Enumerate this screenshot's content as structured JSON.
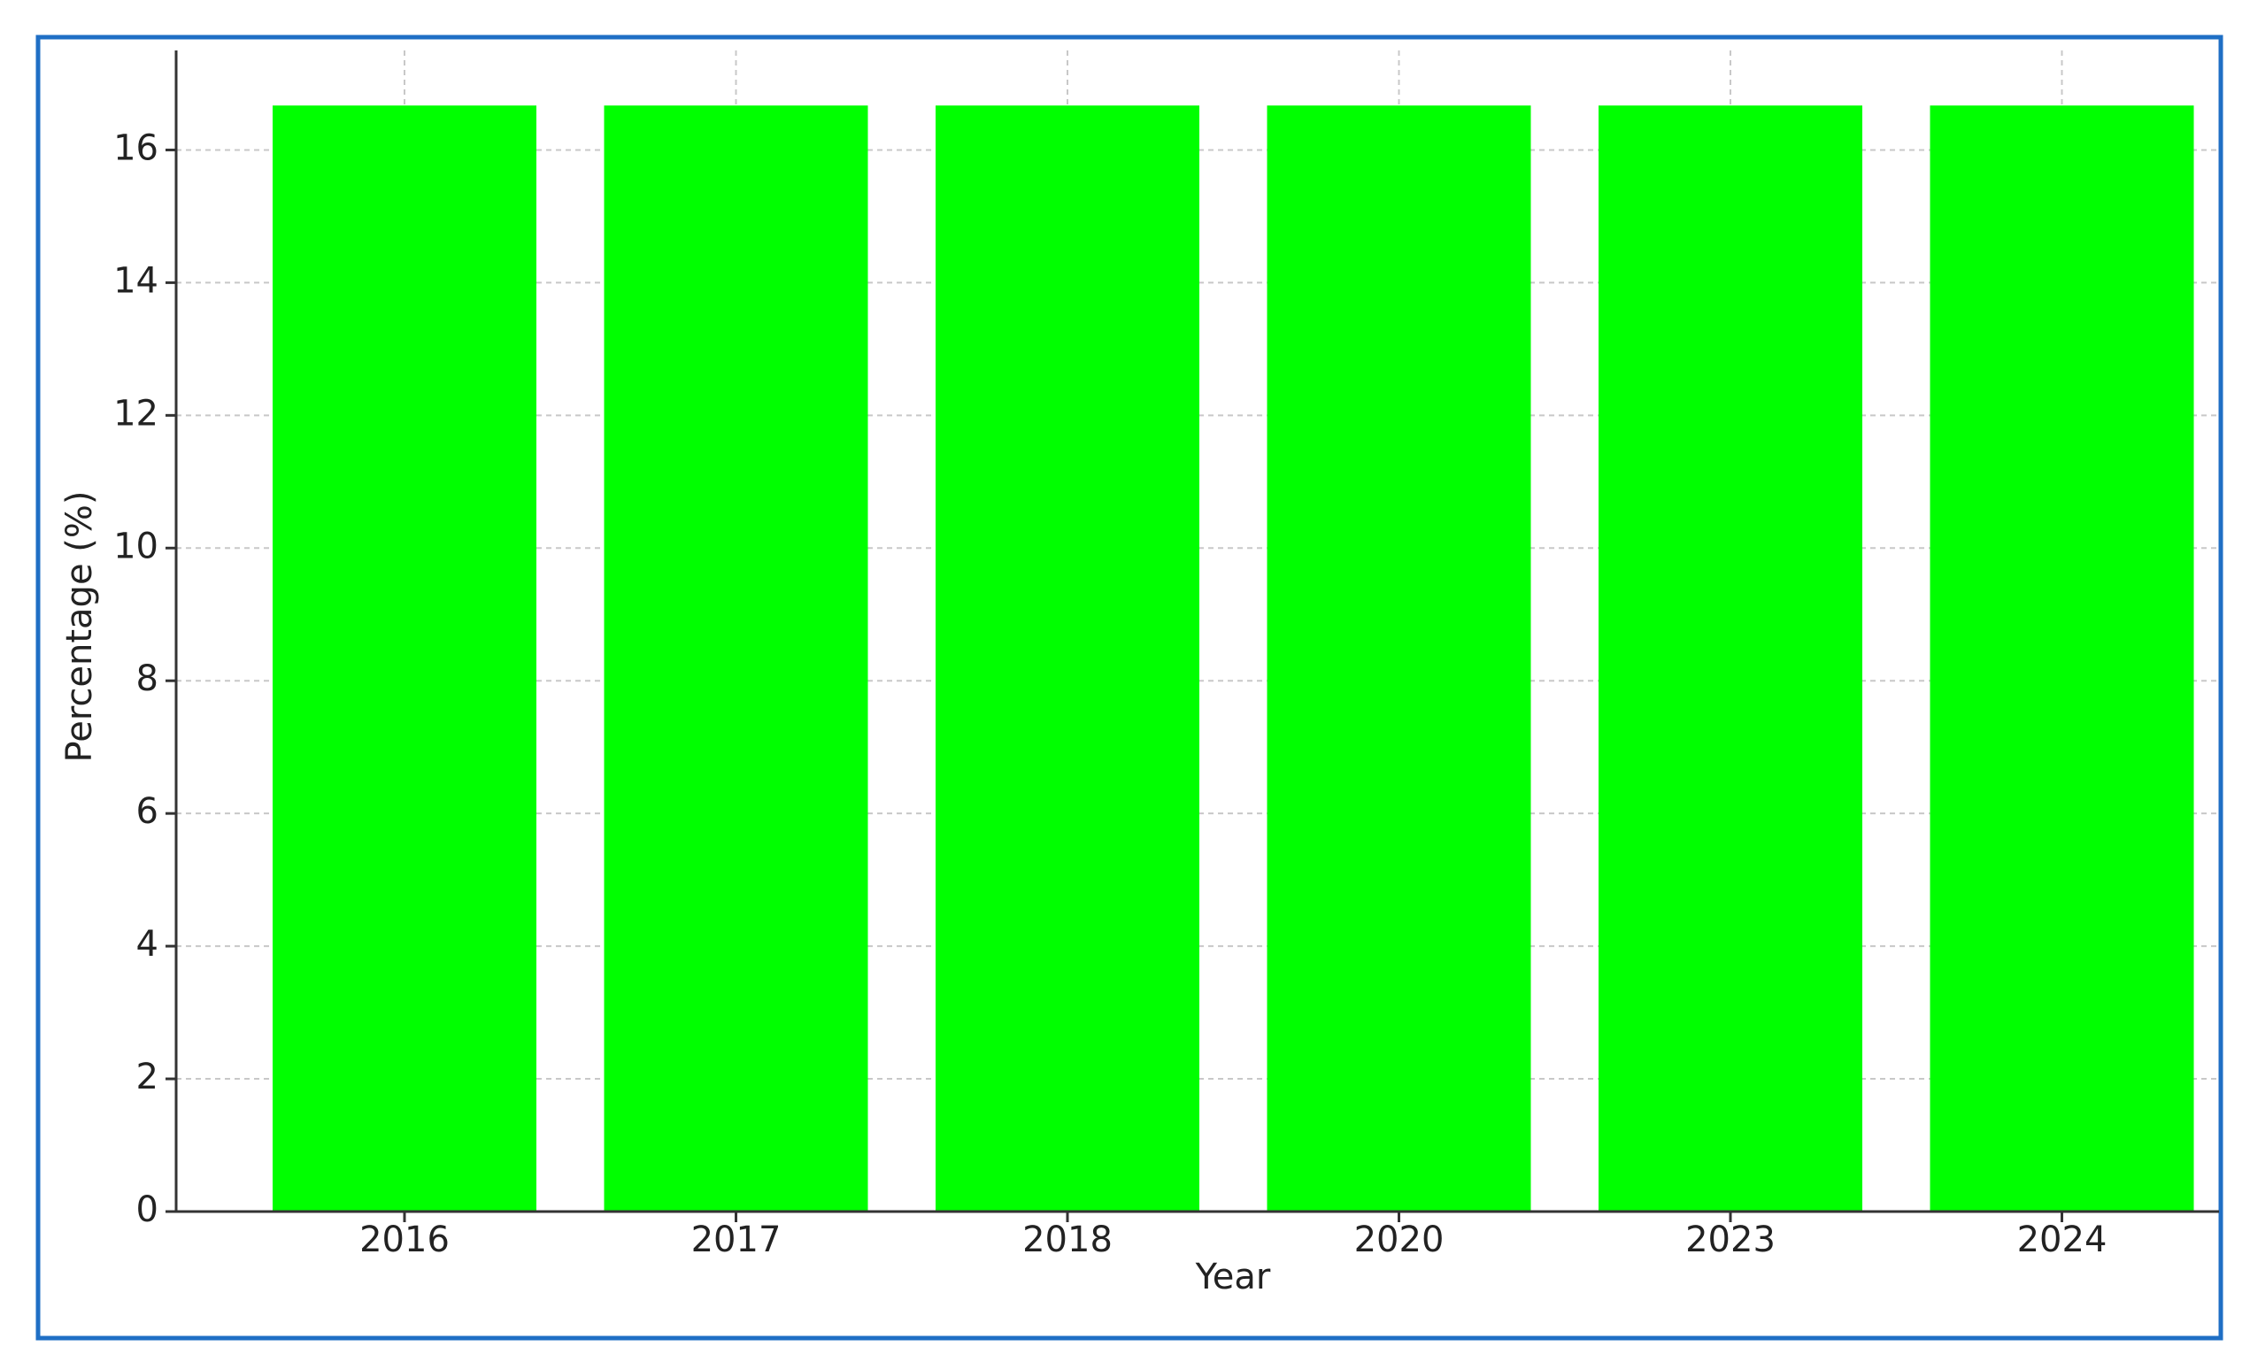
{
  "chart_data": {
    "type": "bar",
    "x_label": "Year",
    "y_label": "Percentage (%)",
    "categories": [
      "2016",
      "2017",
      "2018",
      "2020",
      "2023",
      "2024"
    ],
    "values": [
      16.67,
      16.67,
      16.67,
      16.67,
      16.67,
      16.67
    ],
    "color": "#00ff00",
    "ylim": [
      0,
      17.5
    ],
    "yticks": [
      0,
      2,
      4,
      6,
      8,
      10,
      12,
      14,
      16
    ],
    "grid": true
  }
}
